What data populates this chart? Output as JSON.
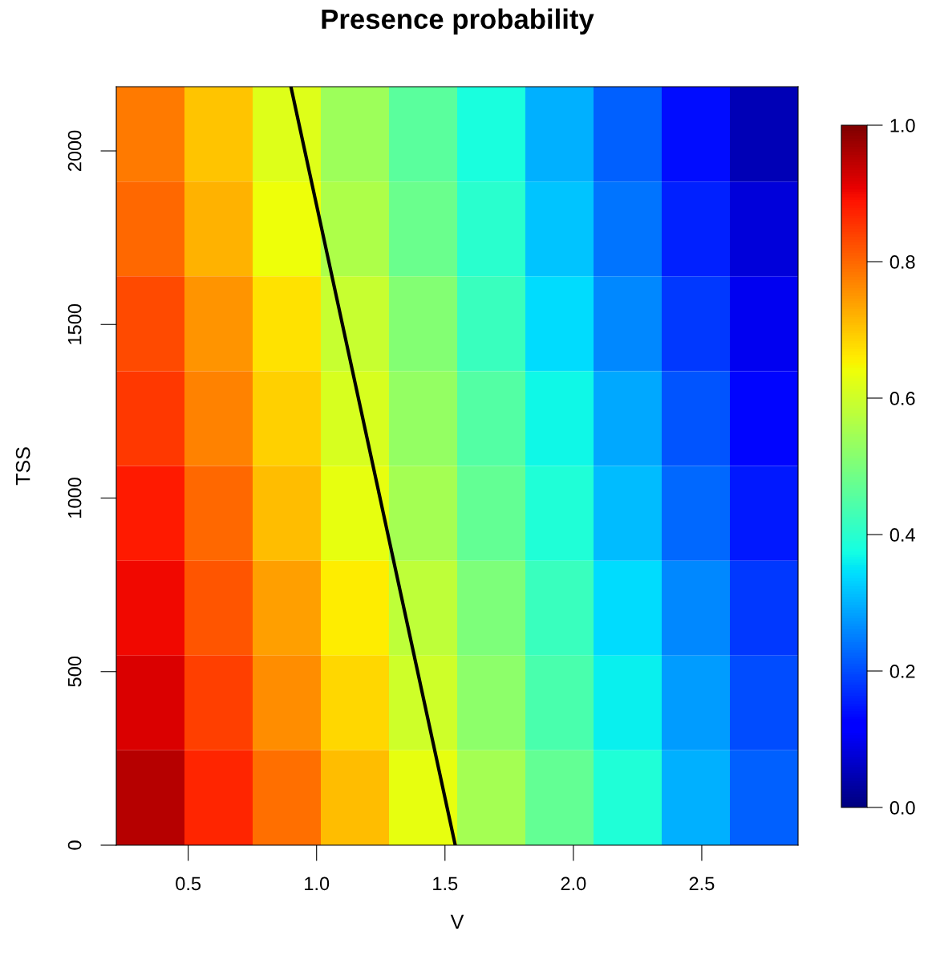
{
  "chart_data": {
    "type": "heatmap",
    "title": "Presence probability",
    "xlabel": "V",
    "ylabel": "TSS",
    "xlim": [
      0.22,
      2.875
    ],
    "ylim": [
      0,
      2185
    ],
    "xticks": [
      0.5,
      {
        "value": 1.0,
        "label": "1.0"
      },
      1.5,
      {
        "value": 2.0,
        "label": "2.0"
      },
      2.5
    ],
    "yticks": [
      0,
      500,
      1000,
      1500,
      2000
    ],
    "cells": [
      [
        0.78,
        0.7,
        0.62,
        0.54,
        0.46,
        0.38,
        0.3,
        0.22,
        0.14,
        0.05
      ],
      [
        0.8,
        0.72,
        0.64,
        0.56,
        0.48,
        0.4,
        0.32,
        0.24,
        0.16,
        0.08
      ],
      [
        0.83,
        0.75,
        0.67,
        0.59,
        0.51,
        0.42,
        0.34,
        0.26,
        0.18,
        0.1
      ],
      [
        0.85,
        0.77,
        0.69,
        0.61,
        0.53,
        0.45,
        0.37,
        0.29,
        0.21,
        0.13
      ],
      [
        0.88,
        0.8,
        0.71,
        0.63,
        0.55,
        0.47,
        0.39,
        0.31,
        0.23,
        0.15
      ],
      [
        0.9,
        0.82,
        0.74,
        0.66,
        0.58,
        0.5,
        0.42,
        0.34,
        0.26,
        0.18
      ],
      [
        0.92,
        0.84,
        0.76,
        0.68,
        0.6,
        0.52,
        0.44,
        0.36,
        0.28,
        0.2
      ],
      [
        0.95,
        0.87,
        0.79,
        0.71,
        0.63,
        0.55,
        0.47,
        0.39,
        0.3,
        0.22
      ]
    ],
    "clim": [
      0,
      1
    ],
    "cticks": [
      {
        "value": 0,
        "label": "0.0"
      },
      {
        "value": 0.2,
        "label": "0.2"
      },
      {
        "value": 0.4,
        "label": "0.4"
      },
      {
        "value": 0.6,
        "label": "0.6"
      },
      {
        "value": 0.8,
        "label": "0.8"
      },
      {
        "value": 1.0,
        "label": "1.0"
      }
    ],
    "series": [
      {
        "type": "line",
        "color": "#000000",
        "x": [
          1.54,
          0.9
        ],
        "values": [
          0,
          2185
        ]
      }
    ]
  }
}
